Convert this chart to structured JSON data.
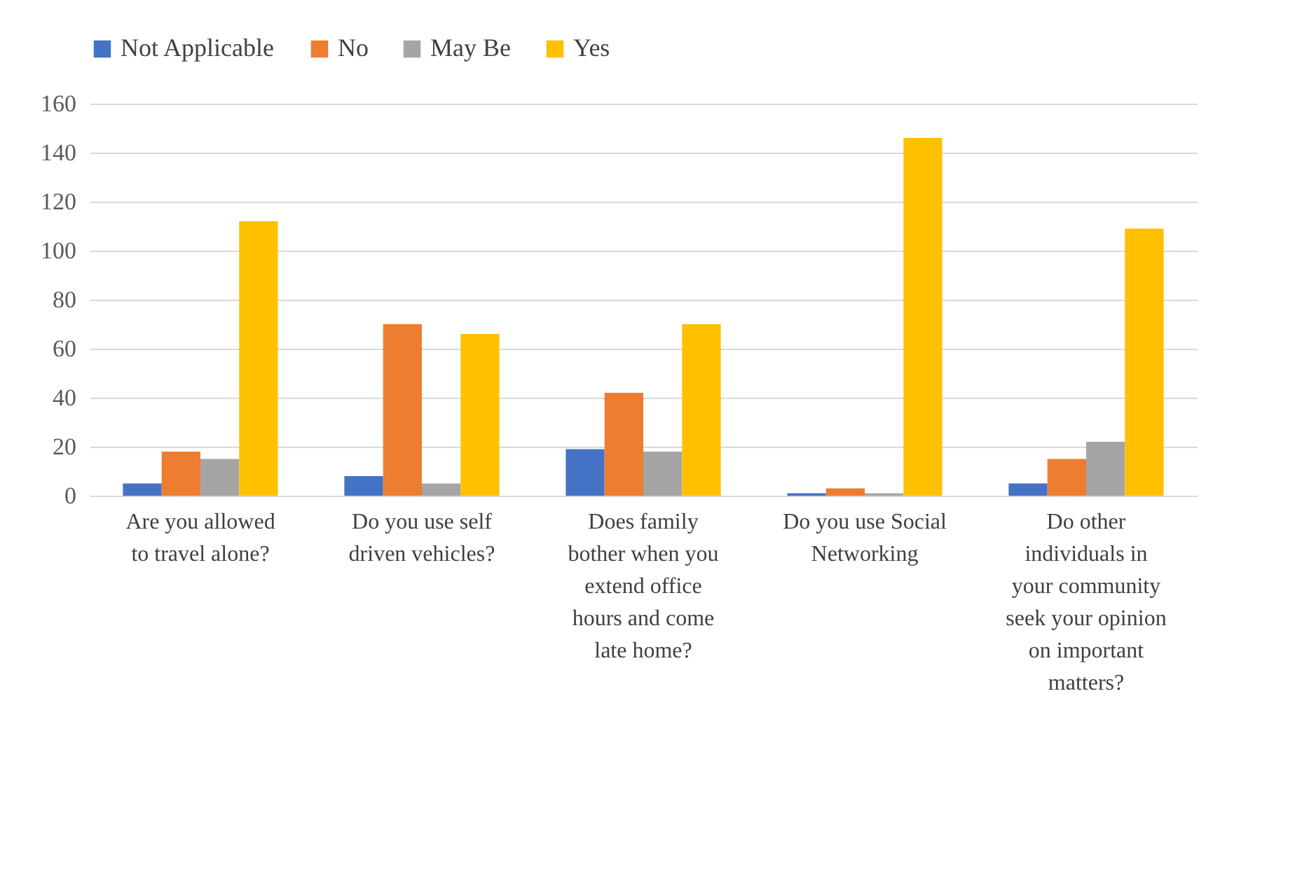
{
  "chart_data": {
    "type": "bar",
    "categories": [
      "Are you allowed to travel alone?",
      "Do you use self driven vehicles?",
      "Does family bother  when you extend office hours and come late home?",
      "Do you use Social Networking",
      "Do other individuals in your community seek your opinion on important matters?"
    ],
    "series": [
      {
        "name": "Not Applicable",
        "color": "#4472c4",
        "values": [
          5,
          8,
          19,
          1,
          5
        ]
      },
      {
        "name": "No",
        "color": "#ed7d31",
        "values": [
          18,
          70,
          42,
          3,
          15
        ]
      },
      {
        "name": "May Be",
        "color": "#a5a5a5",
        "values": [
          15,
          5,
          18,
          1,
          22
        ]
      },
      {
        "name": "Yes",
        "color": "#ffc000",
        "values": [
          112,
          66,
          70,
          146,
          109
        ]
      }
    ],
    "ylim": [
      0,
      160
    ],
    "yticks": [
      0,
      20,
      40,
      60,
      80,
      100,
      120,
      140,
      160
    ],
    "grid": "y",
    "legend": "top"
  }
}
